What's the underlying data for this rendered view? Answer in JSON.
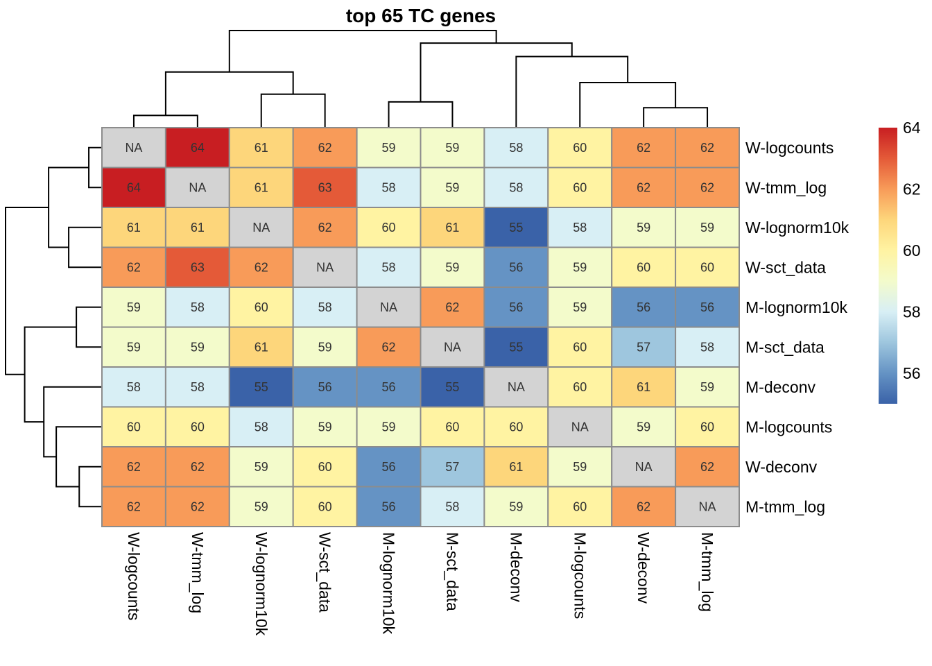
{
  "chart_data": {
    "type": "heatmap",
    "title": "top 65 TC genes",
    "rows": [
      "W-logcounts",
      "W-tmm_log",
      "W-lognorm10k",
      "W-sct_data",
      "M-lognorm10k",
      "M-sct_data",
      "M-deconv",
      "M-logcounts",
      "W-deconv",
      "M-tmm_log"
    ],
    "columns": [
      "W-logcounts",
      "W-tmm_log",
      "W-lognorm10k",
      "W-sct_data",
      "M-lognorm10k",
      "M-sct_data",
      "M-deconv",
      "M-logcounts",
      "W-deconv",
      "M-tmm_log"
    ],
    "values": [
      [
        null,
        64,
        61,
        62,
        59,
        59,
        58,
        60,
        62,
        62
      ],
      [
        64,
        null,
        61,
        63,
        58,
        59,
        58,
        60,
        62,
        62
      ],
      [
        61,
        61,
        null,
        62,
        60,
        61,
        55,
        58,
        59,
        59
      ],
      [
        62,
        63,
        62,
        null,
        58,
        59,
        56,
        59,
        60,
        60
      ],
      [
        59,
        58,
        60,
        58,
        null,
        62,
        56,
        59,
        56,
        56
      ],
      [
        59,
        59,
        61,
        59,
        62,
        null,
        55,
        60,
        57,
        58
      ],
      [
        58,
        58,
        55,
        56,
        56,
        55,
        null,
        60,
        61,
        59
      ],
      [
        60,
        60,
        58,
        59,
        59,
        60,
        60,
        null,
        59,
        60
      ],
      [
        62,
        62,
        59,
        60,
        56,
        57,
        61,
        59,
        null,
        62
      ],
      [
        62,
        62,
        59,
        60,
        56,
        58,
        59,
        60,
        62,
        null
      ]
    ],
    "na_label": "NA",
    "na_color": "#d3d3d3",
    "colorscale": {
      "min": 55,
      "max": 64,
      "colors": [
        "#3a62a8",
        "#6593c4",
        "#9ec6de",
        "#d8eff5",
        "#f3fbcb",
        "#fff3a2",
        "#fdd67b",
        "#f89b59",
        "#e45a38",
        "#c81e22"
      ]
    },
    "legend": {
      "ticks": [
        56,
        58,
        60,
        62,
        64
      ],
      "placement": "right"
    },
    "row_dendrogram": {
      "merges": [
        [
          0,
          1,
          0.13
        ],
        [
          2,
          3,
          0.34
        ],
        [
          10,
          11,
          0.55
        ],
        [
          4,
          5,
          0.26
        ],
        [
          8,
          9,
          0.23
        ],
        [
          7,
          14,
          0.47
        ],
        [
          6,
          15,
          0.6
        ],
        [
          13,
          16,
          0.8
        ],
        [
          12,
          17,
          1.0
        ]
      ]
    },
    "col_dendrogram": {
      "merges": [
        [
          0,
          1,
          0.12
        ],
        [
          2,
          3,
          0.34
        ],
        [
          10,
          11,
          0.57
        ],
        [
          4,
          5,
          0.26
        ],
        [
          8,
          9,
          0.2
        ],
        [
          7,
          14,
          0.46
        ],
        [
          6,
          15,
          0.73
        ],
        [
          13,
          16,
          0.87
        ],
        [
          12,
          17,
          1.0
        ]
      ]
    }
  }
}
